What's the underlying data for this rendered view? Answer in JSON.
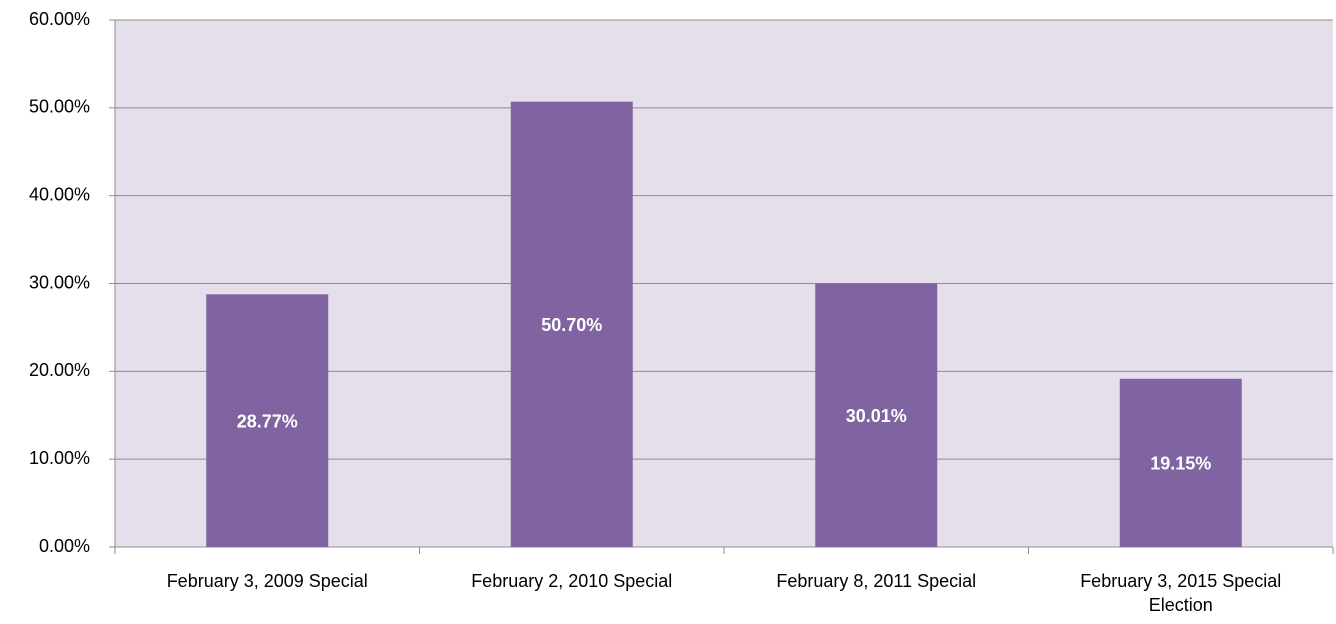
{
  "chart_data": {
    "type": "bar",
    "categories": [
      "February 3, 2009 Special",
      "February 2, 2010 Special",
      "February 8, 2011 Special",
      "February 3, 2015 Special Election"
    ],
    "values": [
      28.77,
      50.7,
      30.01,
      19.15
    ],
    "value_labels": [
      "28.77%",
      "50.70%",
      "30.01%",
      "19.15%"
    ],
    "color": "#8064a2",
    "ylim": [
      0,
      60
    ],
    "yticks": [
      {
        "value": 0,
        "label": "0.00%"
      },
      {
        "value": 10,
        "label": "10.00%"
      },
      {
        "value": 20,
        "label": "20.00%"
      },
      {
        "value": 30,
        "label": "30.00%"
      },
      {
        "value": 40,
        "label": "40.00%"
      },
      {
        "value": 50,
        "label": "50.00%"
      },
      {
        "value": 60,
        "label": "60.00%"
      }
    ],
    "grid": true
  }
}
